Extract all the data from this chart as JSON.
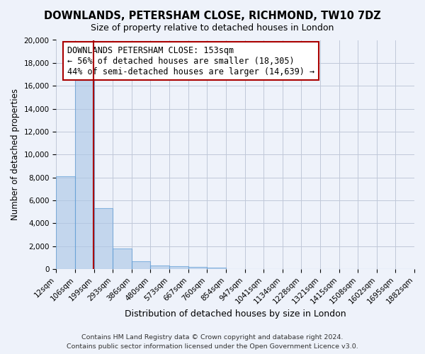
{
  "title": "DOWNLANDS, PETERSHAM CLOSE, RICHMOND, TW10 7DZ",
  "subtitle": "Size of property relative to detached houses in London",
  "xlabel": "Distribution of detached houses by size in London",
  "ylabel": "Number of detached properties",
  "bar_values": [
    8100,
    16500,
    5300,
    1800,
    700,
    300,
    250,
    200,
    150,
    0,
    0,
    0,
    0,
    0,
    0,
    0,
    0,
    0,
    0
  ],
  "bin_edges": [
    0,
    1,
    2,
    3,
    4,
    5,
    6,
    7,
    8,
    9,
    10,
    11,
    12,
    13,
    14,
    15,
    16,
    17,
    18,
    19
  ],
  "bin_labels": [
    "12sqm",
    "106sqm",
    "199sqm",
    "293sqm",
    "386sqm",
    "480sqm",
    "573sqm",
    "667sqm",
    "760sqm",
    "854sqm",
    "947sqm",
    "1041sqm",
    "1134sqm",
    "1228sqm",
    "1321sqm",
    "1415sqm",
    "1508sqm",
    "1602sqm",
    "1695sqm",
    "1882sqm"
  ],
  "bar_color": "#adc8e6",
  "bar_edge_color": "#5b9bd5",
  "bar_alpha": 0.65,
  "vline_color": "#aa0000",
  "vline_x": 1.47,
  "annotation_title": "DOWNLANDS PETERSHAM CLOSE: 153sqm",
  "annotation_line1": "← 56% of detached houses are smaller (18,305)",
  "annotation_line2": "44% of semi-detached houses are larger (14,639) →",
  "ylim": [
    0,
    20000
  ],
  "yticks": [
    0,
    2000,
    4000,
    6000,
    8000,
    10000,
    12000,
    14000,
    16000,
    18000,
    20000
  ],
  "footer1": "Contains HM Land Registry data © Crown copyright and database right 2024.",
  "footer2": "Contains public sector information licensed under the Open Government Licence v3.0.",
  "bg_color": "#eef2fa",
  "plot_bg_color": "#eef2fa",
  "grid_color": "#c0c8d8",
  "title_fontsize": 10.5,
  "xlabel_fontsize": 9,
  "ylabel_fontsize": 8.5,
  "tick_fontsize": 7.5,
  "annotation_fontsize": 8.5,
  "footer_fontsize": 6.8
}
